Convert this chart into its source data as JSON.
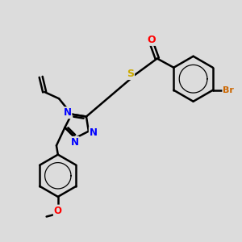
{
  "bg_color": "#dcdcdc",
  "bond_color": "#000000",
  "bond_width": 1.8,
  "atom_colors": {
    "N": "#0000FF",
    "O": "#FF0000",
    "S": "#CCAA00",
    "Br": "#CC6600",
    "C": "#000000"
  },
  "font_size": 8.5,
  "figsize": [
    3.0,
    3.0
  ],
  "dpi": 100
}
